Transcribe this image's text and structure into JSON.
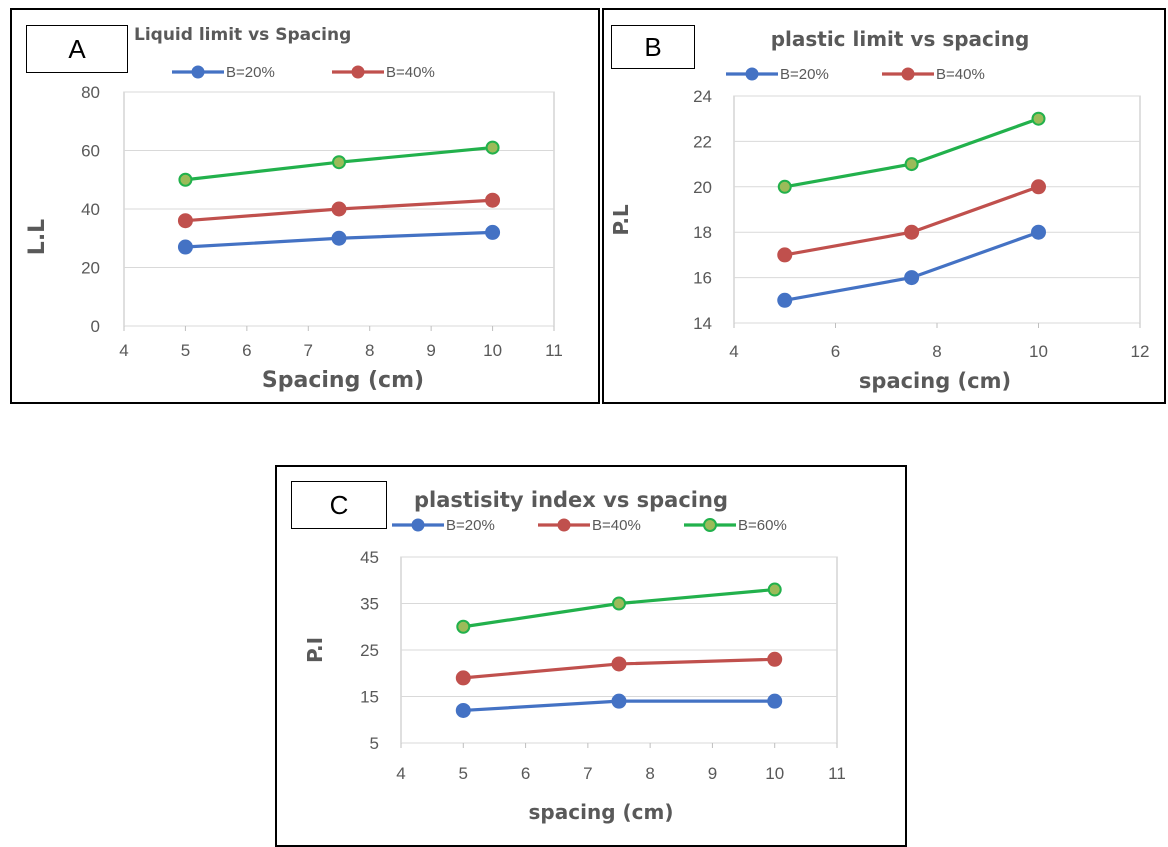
{
  "chart_data": [
    {
      "panel_label": "A",
      "type": "line",
      "title": "Liquid limit vs Spacing",
      "xlabel": "Spacing (cm)",
      "ylabel": "L.L",
      "xlim": [
        4,
        11
      ],
      "ylim": [
        0,
        80
      ],
      "xticks": [
        4,
        5,
        6,
        7,
        8,
        9,
        10,
        11
      ],
      "yticks": [
        0,
        20,
        40,
        60,
        80
      ],
      "legend_entries": [
        "B=20%",
        "B=40%"
      ],
      "series": [
        {
          "name": "B=20%",
          "color": "#4472c4",
          "x": [
            5,
            7.5,
            10
          ],
          "y": [
            27,
            30,
            32
          ]
        },
        {
          "name": "B=40%",
          "color": "#c0504d",
          "x": [
            5,
            7.5,
            10
          ],
          "y": [
            36,
            40,
            43
          ]
        },
        {
          "color": "#22b14c",
          "x": [
            5,
            7.5,
            10
          ],
          "y": [
            50,
            56,
            61
          ]
        }
      ]
    },
    {
      "panel_label": "B",
      "type": "line",
      "title": "plastic limit vs spacing",
      "xlabel": "spacing (cm)",
      "ylabel": "P.L",
      "xlim": [
        4,
        12
      ],
      "ylim": [
        14,
        24
      ],
      "xticks": [
        4,
        6,
        8,
        10,
        12
      ],
      "yticks": [
        14,
        16,
        18,
        20,
        22,
        24
      ],
      "legend_entries": [
        "B=20%",
        "B=40%"
      ],
      "series": [
        {
          "name": "B=20%",
          "color": "#4472c4",
          "x": [
            5,
            7.5,
            10
          ],
          "y": [
            15,
            16,
            18
          ]
        },
        {
          "name": "B=40%",
          "color": "#c0504d",
          "x": [
            5,
            7.5,
            10
          ],
          "y": [
            17,
            18,
            20
          ]
        },
        {
          "color": "#22b14c",
          "x": [
            5,
            7.5,
            10
          ],
          "y": [
            20,
            21,
            23
          ]
        }
      ]
    },
    {
      "panel_label": "C",
      "type": "line",
      "title": "plastisity index vs spacing",
      "xlabel": "spacing (cm)",
      "ylabel": "P.I",
      "xlim": [
        4,
        11
      ],
      "ylim": [
        5,
        45
      ],
      "xticks": [
        4,
        5,
        6,
        7,
        8,
        9,
        10,
        11
      ],
      "yticks": [
        5,
        15,
        25,
        35,
        45
      ],
      "legend_entries": [
        "B=20%",
        "B=40%",
        "B=60%"
      ],
      "series": [
        {
          "name": "B=20%",
          "color": "#4472c4",
          "x": [
            5,
            7.5,
            10
          ],
          "y": [
            12,
            14,
            14
          ]
        },
        {
          "name": "B=40%",
          "color": "#c0504d",
          "x": [
            5,
            7.5,
            10
          ],
          "y": [
            19,
            22,
            23
          ]
        },
        {
          "name": "B=60%",
          "color": "#22b14c",
          "x": [
            5,
            7.5,
            10
          ],
          "y": [
            30,
            35,
            38
          ]
        }
      ]
    }
  ]
}
